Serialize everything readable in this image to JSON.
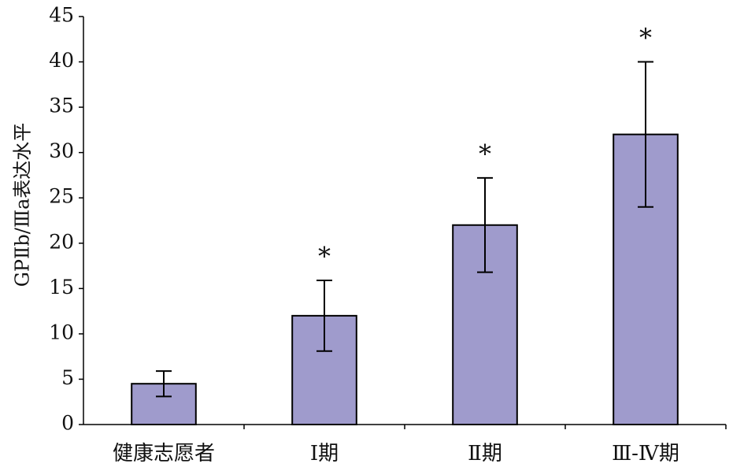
{
  "chart_data": {
    "type": "bar",
    "y_label": "GPⅡb/Ⅲa表达水平",
    "categories": [
      "健康志愿者",
      "Ⅰ期",
      "Ⅱ期",
      "Ⅲ-Ⅳ期"
    ],
    "values": [
      4.5,
      12,
      22,
      32
    ],
    "errors": [
      1.4,
      3.9,
      5.2,
      8
    ],
    "value_annotations": [
      null,
      "*",
      "*",
      "*"
    ],
    "color": "#9f9bcc",
    "ylim": [
      0,
      45
    ],
    "yticks": [
      0,
      5,
      10,
      15,
      20,
      25,
      30,
      35,
      40,
      45
    ],
    "grid": false
  }
}
